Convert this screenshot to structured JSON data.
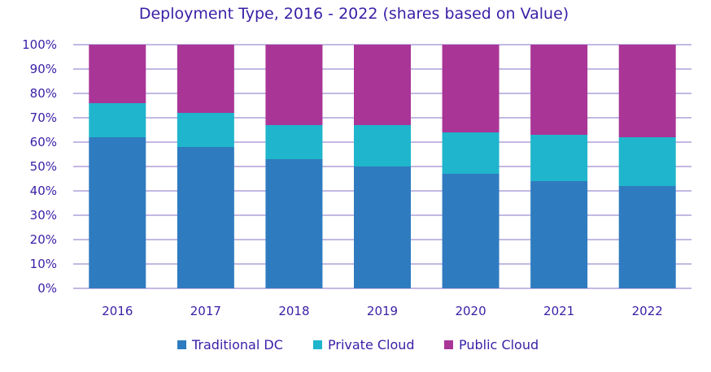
{
  "chart_data": {
    "type": "bar",
    "stacked": true,
    "title": "Deployment Type, 2016 - 2022 (shares based on Value)",
    "xlabel": "",
    "ylabel": "",
    "categories": [
      "2016",
      "2017",
      "2018",
      "2019",
      "2020",
      "2021",
      "2022"
    ],
    "ylim": [
      0,
      100
    ],
    "yticks": [
      "0%",
      "10%",
      "20%",
      "30%",
      "40%",
      "50%",
      "60%",
      "70%",
      "80%",
      "90%",
      "100%"
    ],
    "grid": true,
    "legend_position": "bottom",
    "series": [
      {
        "name": "Traditional DC",
        "color": "#2f7bbf",
        "values": [
          62,
          58,
          53,
          50,
          47,
          44,
          42
        ]
      },
      {
        "name": "Private Cloud",
        "color": "#1fb5cc",
        "values": [
          14,
          14,
          14,
          17,
          17,
          19,
          20
        ]
      },
      {
        "name": "Public Cloud",
        "color": "#a93597",
        "values": [
          24,
          28,
          33,
          33,
          36,
          37,
          38
        ]
      }
    ]
  }
}
